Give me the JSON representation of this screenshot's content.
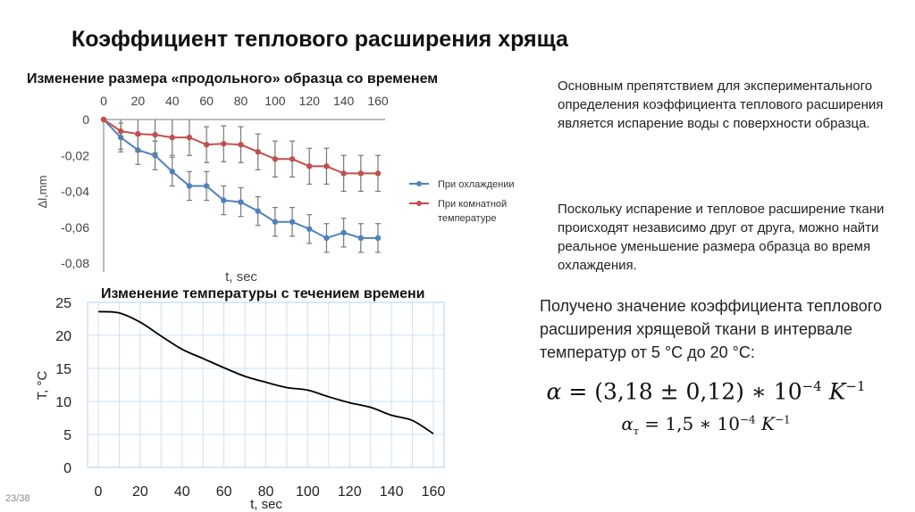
{
  "slide": {
    "title": "Коэффициент теплового расширения хряща",
    "page_number": "23/38"
  },
  "text": {
    "p1": "Основным препятствием для экспериментального определения коэффициента теплового расширения является испарение воды с поверхности образца.",
    "p2": "Поскольку испарение и тепловое расширение ткани происходят независимо друг от друга, можно найти реальное уменьшение размера образца во время охлаждения.",
    "p3": "Получено значение коэффициента теплового расширения хрящевой ткани в интервале температур от 5 °С до 20 °С:"
  },
  "formulas": {
    "f1": {
      "symbol": "α",
      "body": " = (3,18 ± 0,12) ∗ 10",
      "exp": "−4",
      "unit": "K",
      "unit_exp": "−1"
    },
    "f2": {
      "symbol": "α",
      "sub": "т",
      "body": " = 1,5 ∗ 10",
      "exp": "−4",
      "unit": "K",
      "unit_exp": "−1"
    }
  },
  "chart_data": [
    {
      "type": "line",
      "title": "Изменение размера «продольного» образца со временем",
      "xlabel": "t, sec",
      "ylabel": "Δl,mm",
      "x_axis_position": "top",
      "xlim": [
        0,
        160
      ],
      "ylim": [
        -0.08,
        0
      ],
      "xticks": [
        "0",
        "20",
        "40",
        "60",
        "80",
        "100",
        "120",
        "140",
        "160"
      ],
      "yticks": [
        "0",
        "-0,02",
        "-0,04",
        "-0,06",
        "-0,08"
      ],
      "grid": false,
      "legend_position": "right",
      "x": [
        0,
        10,
        20,
        30,
        40,
        50,
        60,
        70,
        80,
        90,
        100,
        110,
        120,
        130,
        140,
        150,
        160
      ],
      "series": [
        {
          "name": "При охлаждении",
          "color": "#4f81bd",
          "values": [
            0,
            -0.01,
            -0.017,
            -0.02,
            -0.029,
            -0.037,
            -0.037,
            -0.045,
            -0.046,
            -0.051,
            -0.057,
            -0.057,
            -0.061,
            -0.066,
            -0.063,
            -0.066,
            -0.066
          ],
          "error": 0.008
        },
        {
          "name": "При комнатной температуре",
          "color": "#c0504d",
          "values": [
            0,
            -0.0065,
            -0.008,
            -0.0085,
            -0.01,
            -0.01,
            -0.014,
            -0.0135,
            -0.014,
            -0.018,
            -0.022,
            -0.022,
            -0.026,
            -0.026,
            -0.03,
            -0.03,
            -0.03
          ],
          "error": 0.01
        }
      ]
    },
    {
      "type": "line",
      "title": "Изменение температуры с течением времени",
      "xlabel": "t, sec",
      "ylabel": "T, °C",
      "xlim": [
        0,
        160
      ],
      "ylim": [
        0,
        25
      ],
      "xticks": [
        "0",
        "20",
        "40",
        "60",
        "80",
        "100",
        "120",
        "140",
        "160"
      ],
      "yticks": [
        "0",
        "5",
        "10",
        "15",
        "20",
        "25"
      ],
      "grid": true,
      "x": [
        0,
        10,
        20,
        30,
        40,
        50,
        60,
        70,
        80,
        90,
        100,
        110,
        120,
        130,
        140,
        150,
        160
      ],
      "series": [
        {
          "color": "#000000",
          "values": [
            23.6,
            23.4,
            22.0,
            19.9,
            17.9,
            16.5,
            15.1,
            13.8,
            12.9,
            12.1,
            11.7,
            10.7,
            9.8,
            9.1,
            7.9,
            7.1,
            5.1
          ]
        }
      ]
    }
  ]
}
